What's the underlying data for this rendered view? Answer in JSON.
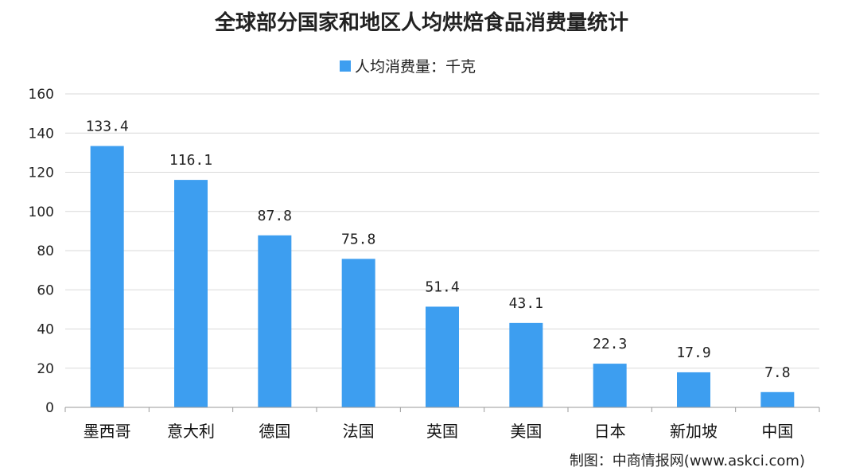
{
  "chart_data": {
    "type": "bar",
    "title": "全球部分国家和地区人均烘焙食品消费量统计",
    "series": [
      {
        "name": "人均消费量：千克",
        "values": [
          133.4,
          116.1,
          87.8,
          75.8,
          51.4,
          43.1,
          22.3,
          17.9,
          7.8
        ],
        "value_labels": [
          "133.4",
          "116.1",
          "87.8",
          "75.8",
          "51.4",
          "43.1",
          "22.3",
          "17.9",
          "7.8"
        ]
      }
    ],
    "categories": [
      "墨西哥",
      "意大利",
      "德国",
      "法国",
      "英国",
      "美国",
      "日本",
      "新加坡",
      "中国"
    ],
    "ylim": [
      0,
      160
    ],
    "yticks": [
      "0",
      "20",
      "40",
      "60",
      "80",
      "100",
      "120",
      "140",
      "160"
    ],
    "grid": true,
    "legend": "top-center",
    "bar_color": "#3d9ef0"
  },
  "source": "制图：中商情报网(www.askci.com)"
}
